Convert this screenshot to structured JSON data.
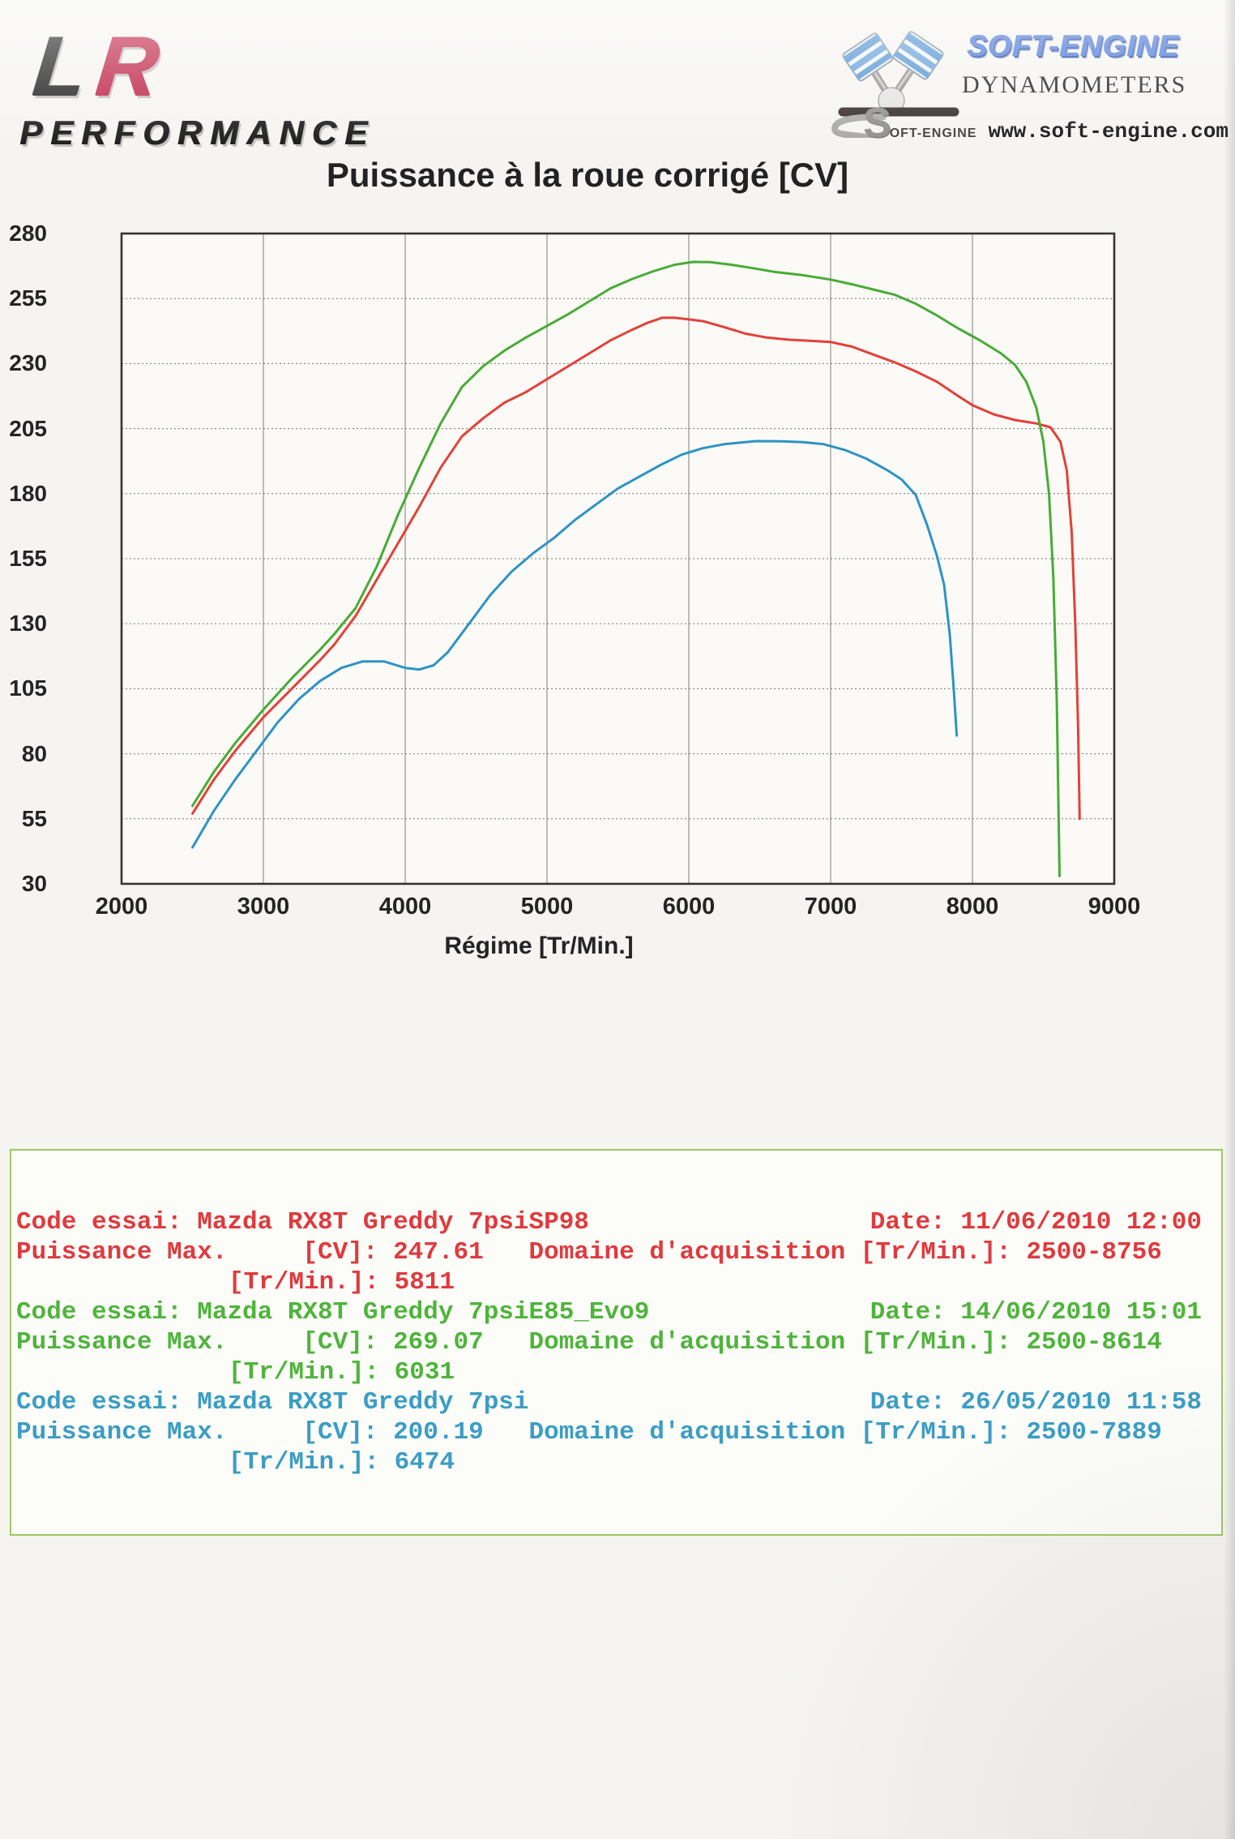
{
  "header": {
    "lr_logo": {
      "letter_l": "L",
      "letter_r": "R",
      "r_color": "#bd1d41",
      "subtitle": "PERFORMANCE"
    },
    "soft_engine": {
      "brand": "SOFT-ENGINE",
      "brand_color": "#3f6fd4",
      "subtitle": "DYNAMOMETERS",
      "footer_s": "S",
      "footer_brand": "OFT-ENGINE",
      "website": "www.soft-engine.com",
      "pistons_icon": "v-twin-pistons-crank"
    }
  },
  "title": "Puissance à la roue corrigé [CV]",
  "chart_data": {
    "type": "line",
    "title": "Puissance à la roue corrigé [CV]",
    "xlabel": "Régime [Tr/Min.]",
    "ylabel": "",
    "xlim": [
      2000,
      9000
    ],
    "ylim": [
      30,
      280
    ],
    "x_ticks": [
      2000,
      3000,
      4000,
      5000,
      6000,
      7000,
      8000,
      9000
    ],
    "y_ticks": [
      30,
      55,
      80,
      105,
      130,
      155,
      180,
      205,
      230,
      255,
      280
    ],
    "grid": "vertical solid, horizontal dotted",
    "legend_position": "bottom",
    "series": [
      {
        "name": "Mazda RX8T Greddy 7psiSP98",
        "color": "#e2413a",
        "max_cv": 247.61,
        "max_rpm": 5811,
        "rpm_range": "2500-8756",
        "points": [
          [
            2500,
            57
          ],
          [
            2650,
            70
          ],
          [
            2800,
            81
          ],
          [
            3000,
            94
          ],
          [
            3200,
            105
          ],
          [
            3400,
            116
          ],
          [
            3500,
            122
          ],
          [
            3650,
            133
          ],
          [
            3800,
            147
          ],
          [
            3950,
            161
          ],
          [
            4100,
            175
          ],
          [
            4250,
            190
          ],
          [
            4400,
            202
          ],
          [
            4550,
            209
          ],
          [
            4700,
            215
          ],
          [
            4850,
            219
          ],
          [
            5000,
            224
          ],
          [
            5150,
            229
          ],
          [
            5300,
            234
          ],
          [
            5450,
            239
          ],
          [
            5600,
            243
          ],
          [
            5700,
            245.5
          ],
          [
            5811,
            247.6
          ],
          [
            5900,
            247.6
          ],
          [
            6000,
            247
          ],
          [
            6100,
            246.3
          ],
          [
            6250,
            244
          ],
          [
            6400,
            241.5
          ],
          [
            6550,
            240
          ],
          [
            6700,
            239.2
          ],
          [
            6850,
            238.8
          ],
          [
            7000,
            238.3
          ],
          [
            7150,
            236.5
          ],
          [
            7300,
            233.5
          ],
          [
            7450,
            230.5
          ],
          [
            7600,
            227
          ],
          [
            7750,
            223
          ],
          [
            7900,
            217.5
          ],
          [
            8000,
            214
          ],
          [
            8150,
            210.5
          ],
          [
            8300,
            208.3
          ],
          [
            8450,
            207
          ],
          [
            8550,
            205.5
          ],
          [
            8620,
            200
          ],
          [
            8665,
            189
          ],
          [
            8700,
            165
          ],
          [
            8725,
            130
          ],
          [
            8745,
            90
          ],
          [
            8756,
            55
          ]
        ]
      },
      {
        "name": "Mazda RX8T Greddy 7psiE85_Evo9",
        "color": "#48ab37",
        "max_cv": 269.07,
        "max_rpm": 6031,
        "rpm_range": "2500-8614",
        "points": [
          [
            2500,
            60
          ],
          [
            2650,
            73
          ],
          [
            2800,
            84
          ],
          [
            3000,
            97
          ],
          [
            3200,
            109
          ],
          [
            3400,
            120
          ],
          [
            3500,
            126
          ],
          [
            3650,
            136
          ],
          [
            3800,
            152
          ],
          [
            3950,
            172
          ],
          [
            4100,
            190
          ],
          [
            4250,
            207
          ],
          [
            4400,
            221
          ],
          [
            4550,
            229
          ],
          [
            4700,
            235
          ],
          [
            4850,
            240
          ],
          [
            5000,
            244.5
          ],
          [
            5150,
            249
          ],
          [
            5300,
            254
          ],
          [
            5450,
            259
          ],
          [
            5600,
            262.5
          ],
          [
            5750,
            265.5
          ],
          [
            5900,
            268
          ],
          [
            6031,
            269.1
          ],
          [
            6150,
            269
          ],
          [
            6300,
            268
          ],
          [
            6450,
            266.7
          ],
          [
            6600,
            265.3
          ],
          [
            6800,
            264
          ],
          [
            7000,
            262.3
          ],
          [
            7150,
            260.5
          ],
          [
            7300,
            258.5
          ],
          [
            7450,
            256.5
          ],
          [
            7600,
            253
          ],
          [
            7750,
            248.5
          ],
          [
            7900,
            243.5
          ],
          [
            8050,
            239
          ],
          [
            8200,
            234
          ],
          [
            8300,
            229.5
          ],
          [
            8380,
            223
          ],
          [
            8450,
            213
          ],
          [
            8500,
            200
          ],
          [
            8540,
            180
          ],
          [
            8570,
            148
          ],
          [
            8595,
            100
          ],
          [
            8614,
            33
          ]
        ]
      },
      {
        "name": "Mazda RX8T Greddy 7psi",
        "color": "#2e93c4",
        "max_cv": 200.19,
        "max_rpm": 6474,
        "rpm_range": "2500-7889",
        "points": [
          [
            2500,
            44
          ],
          [
            2650,
            58
          ],
          [
            2800,
            70
          ],
          [
            2950,
            81
          ],
          [
            3100,
            92
          ],
          [
            3250,
            101
          ],
          [
            3400,
            108
          ],
          [
            3550,
            113
          ],
          [
            3700,
            115.5
          ],
          [
            3850,
            115.5
          ],
          [
            4000,
            113
          ],
          [
            4100,
            112.4
          ],
          [
            4200,
            114
          ],
          [
            4300,
            119
          ],
          [
            4450,
            130
          ],
          [
            4600,
            141
          ],
          [
            4750,
            150
          ],
          [
            4900,
            157
          ],
          [
            5050,
            163
          ],
          [
            5200,
            170
          ],
          [
            5350,
            176
          ],
          [
            5500,
            182
          ],
          [
            5650,
            186.5
          ],
          [
            5800,
            191
          ],
          [
            5950,
            195
          ],
          [
            6100,
            197.5
          ],
          [
            6250,
            199
          ],
          [
            6474,
            200.2
          ],
          [
            6650,
            200.1
          ],
          [
            6800,
            199.8
          ],
          [
            6950,
            199
          ],
          [
            7100,
            196.8
          ],
          [
            7250,
            193.5
          ],
          [
            7400,
            189
          ],
          [
            7500,
            185.5
          ],
          [
            7600,
            179.5
          ],
          [
            7680,
            168
          ],
          [
            7750,
            156
          ],
          [
            7800,
            145
          ],
          [
            7840,
            126
          ],
          [
            7868,
            105
          ],
          [
            7889,
            87
          ]
        ]
      }
    ]
  },
  "legend": {
    "border_color": "#9cc95e",
    "entries": [
      {
        "color": "#df3a3e",
        "code_label": "Code essai: Mazda RX8T Greddy 7psiSP98",
        "date_label": "Date: 11/06/2010 12:00",
        "power_line": "Puissance Max.     [CV]: 247.61   Domaine d'acquisition [Tr/Min.]: 2500-8756",
        "rpm_line": "[Tr/Min.]: 5811"
      },
      {
        "color": "#4fb43c",
        "code_label": "Code essai: Mazda RX8T Greddy 7psiE85_Evo9",
        "date_label": "Date: 14/06/2010 15:01",
        "power_line": "Puissance Max.     [CV]: 269.07   Domaine d'acquisition [Tr/Min.]: 2500-8614",
        "rpm_line": "[Tr/Min.]: 6031"
      },
      {
        "color": "#3b9dc4",
        "code_label": "Code essai: Mazda RX8T Greddy 7psi",
        "date_label": "Date: 26/05/2010 11:58",
        "power_line": "Puissance Max.     [CV]: 200.19   Domaine d'acquisition [Tr/Min.]: 2500-7889",
        "rpm_line": "[Tr/Min.]: 6474"
      }
    ]
  }
}
